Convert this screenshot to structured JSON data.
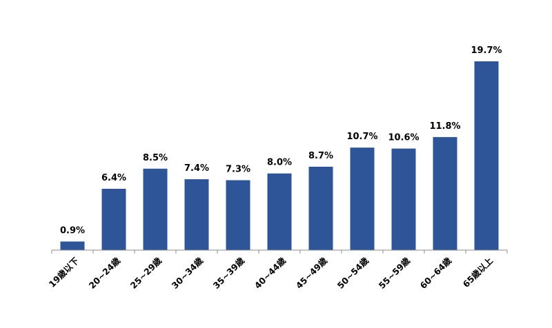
{
  "chart_data": {
    "type": "bar",
    "title": "",
    "xlabel": "",
    "ylabel": "",
    "categories": [
      "19歳以下",
      "20~24歳",
      "25~29歳",
      "30~34歳",
      "35~39歳",
      "40~44歳",
      "45~49歳",
      "50~54歳",
      "55~59歳",
      "60~64歳",
      "65歳以上"
    ],
    "values": [
      0.9,
      6.4,
      8.5,
      7.4,
      7.3,
      8.0,
      8.7,
      10.7,
      10.6,
      11.8,
      19.7
    ],
    "value_labels": [
      "0.9%",
      "6.4%",
      "8.5%",
      "7.4%",
      "7.3%",
      "8.0%",
      "8.7%",
      "10.7%",
      "10.6%",
      "11.8%",
      "19.7%"
    ],
    "unit": "%",
    "ylim": [
      0,
      19.7
    ],
    "grid": false,
    "legend": "none",
    "bar_color": "#2e5597"
  }
}
